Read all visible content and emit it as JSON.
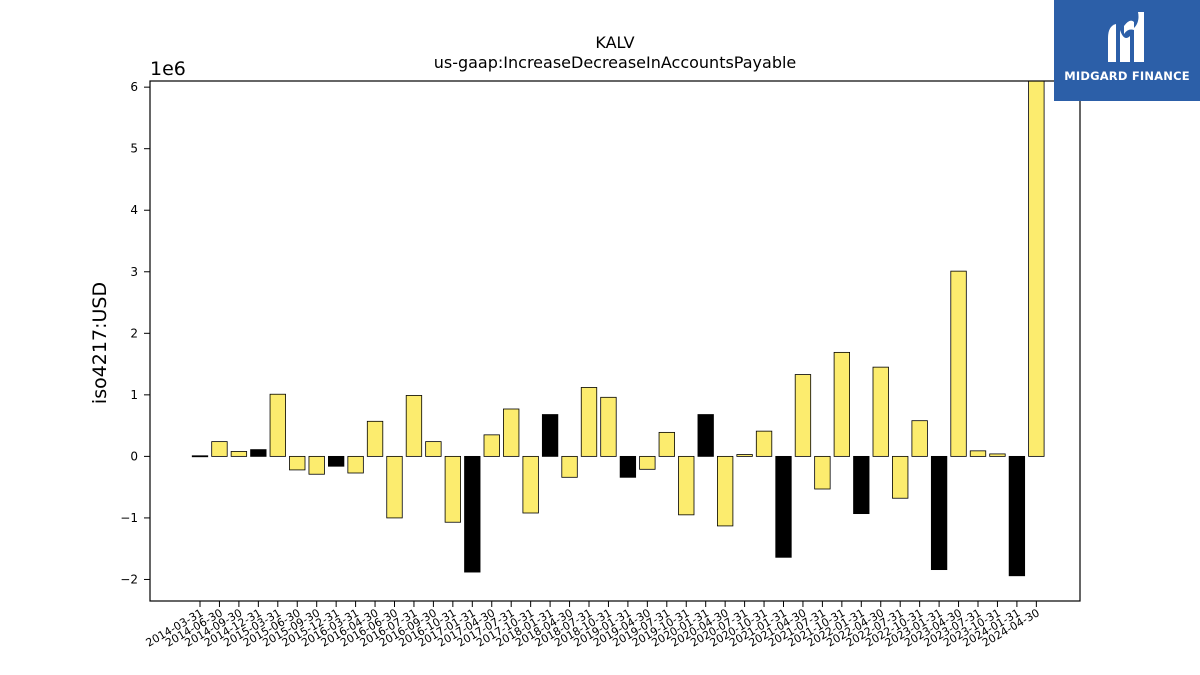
{
  "chart_data": {
    "type": "bar",
    "title": "KALV",
    "subtitle": "us-gaap:IncreaseDecreaseInAccountsPayable",
    "ylabel": "iso4217:USD",
    "xlabel": "",
    "y_multiplier_label": "1e6",
    "ylim": [
      -2.35,
      6.1
    ],
    "yticks": [
      -2,
      -1,
      0,
      1,
      2,
      3,
      4,
      5,
      6
    ],
    "ytick_labels": [
      "−2",
      "−1",
      "0",
      "1",
      "2",
      "3",
      "4",
      "5",
      "6"
    ],
    "grid": false,
    "colors": {
      "yellow": "#fcec6e",
      "black": "#000000",
      "edge": "#000000"
    },
    "categories": [
      "2014-03-31",
      "2014-06-30",
      "2014-09-30",
      "2014-12-31",
      "2015-03-31",
      "2015-06-30",
      "2015-09-30",
      "2015-12-31",
      "2016-03-31",
      "2016-04-30",
      "2016-06-30",
      "2016-07-31",
      "2016-09-30",
      "2016-10-31",
      "2017-01-31",
      "2017-04-30",
      "2017-07-31",
      "2017-10-31",
      "2018-01-31",
      "2018-04-30",
      "2018-07-31",
      "2018-10-31",
      "2019-01-31",
      "2019-04-30",
      "2019-07-31",
      "2019-10-31",
      "2020-01-31",
      "2020-04-30",
      "2020-07-31",
      "2020-10-31",
      "2021-01-31",
      "2021-04-30",
      "2021-07-31",
      "2021-10-31",
      "2022-01-31",
      "2022-04-30",
      "2022-07-31",
      "2022-10-31",
      "2023-01-31",
      "2023-04-30",
      "2023-07-31",
      "2023-10-31",
      "2024-01-31",
      "2024-04-30"
    ],
    "values": [
      0.01,
      0.24,
      0.08,
      0.11,
      1.01,
      -0.22,
      -0.29,
      -0.16,
      -0.27,
      0.57,
      -1.0,
      0.99,
      0.24,
      -1.07,
      -1.88,
      0.35,
      0.77,
      -0.92,
      0.68,
      -0.34,
      1.12,
      0.96,
      -0.34,
      -0.21,
      0.39,
      -0.95,
      0.68,
      -1.13,
      0.03,
      0.41,
      -1.64,
      1.33,
      -0.53,
      1.69,
      -0.93,
      1.45,
      -0.68,
      0.58,
      -1.84,
      3.01,
      0.09,
      0.04,
      -1.94,
      6.1
    ],
    "bar_colors": [
      "black",
      "yellow",
      "yellow",
      "black",
      "yellow",
      "yellow",
      "yellow",
      "black",
      "yellow",
      "yellow",
      "yellow",
      "yellow",
      "yellow",
      "yellow",
      "black",
      "yellow",
      "yellow",
      "yellow",
      "black",
      "yellow",
      "yellow",
      "yellow",
      "black",
      "yellow",
      "yellow",
      "yellow",
      "black",
      "yellow",
      "yellow",
      "yellow",
      "black",
      "yellow",
      "yellow",
      "yellow",
      "black",
      "yellow",
      "yellow",
      "yellow",
      "black",
      "yellow",
      "yellow",
      "yellow",
      "black",
      "yellow"
    ]
  },
  "logo": {
    "text": "MIDGARD FINANCE",
    "background": "#2c5fa8"
  }
}
